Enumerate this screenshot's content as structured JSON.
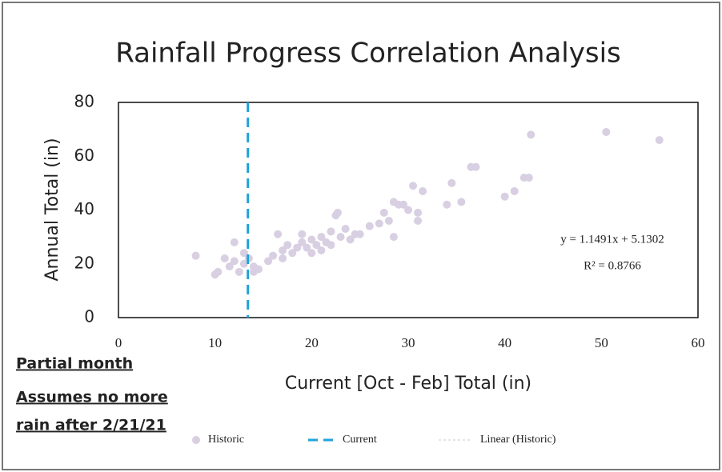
{
  "chart_data": {
    "type": "scatter",
    "title": "Rainfall Progress Correlation Analysis",
    "x_label": "Current [Oct - Feb] Total (in)",
    "y_label": "Annual Total (in)",
    "xlim": [
      0,
      60
    ],
    "xticks": [
      0,
      10,
      20,
      30,
      40,
      50,
      60
    ],
    "ylim": [
      0,
      80
    ],
    "yticks": [
      0,
      20,
      40,
      60,
      80
    ],
    "series": [
      {
        "name": "Historic",
        "color": "#d8cfe2",
        "x": [
          8,
          10,
          10.3,
          11,
          11.5,
          12,
          12,
          12.5,
          13,
          13,
          13.5,
          14,
          14,
          14.5,
          15.5,
          16,
          16.5,
          17,
          17,
          17.5,
          18,
          18.5,
          19,
          19,
          19.5,
          20,
          20,
          20.5,
          21,
          21,
          21.5,
          22,
          22,
          22.5,
          22.7,
          23,
          23.5,
          24,
          24.5,
          25,
          26,
          27,
          27.5,
          28,
          28.5,
          28.5,
          29,
          29.5,
          30,
          30.5,
          31,
          31,
          31.5,
          34,
          34.5,
          35.5,
          36.5,
          37,
          40,
          41,
          42,
          42.5,
          42.7,
          50.5,
          56
        ],
        "values": [
          23,
          16,
          17,
          22,
          19,
          28,
          21,
          17,
          24,
          20,
          22,
          19,
          17,
          18,
          21,
          23,
          31,
          22,
          25,
          27,
          24,
          26,
          28,
          31,
          26,
          29,
          24,
          27,
          25,
          30,
          28,
          32,
          27,
          38,
          39,
          30,
          33,
          29,
          31,
          31,
          34,
          35,
          39,
          36,
          43,
          30,
          42,
          42,
          40,
          49,
          39,
          36,
          47,
          42,
          50,
          43,
          56,
          56,
          45,
          47,
          52,
          52,
          68,
          69,
          66
        ]
      },
      {
        "name": "Current",
        "color": "#1fa3d9",
        "x": [
          13.4
        ]
      },
      {
        "name": "Linear (Historic)",
        "color": "#e6e2ea"
      }
    ],
    "trendline_equation": "y = 1.1491x + 5.1302",
    "trendline_r2": "R² = 0.8766",
    "annotations": [
      "Partial month",
      "Assumes no more",
      "rain after 2/21/21"
    ]
  }
}
